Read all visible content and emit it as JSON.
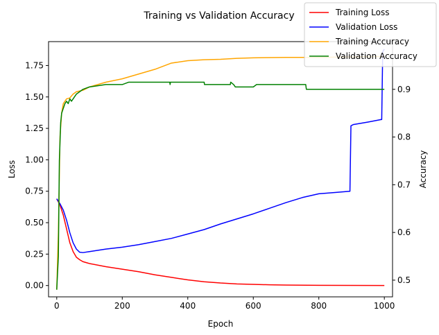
{
  "chart_data": {
    "type": "line",
    "title": "Training vs Validation Accuracy",
    "xlabel": "Epoch",
    "ylabel_left": "Loss",
    "ylabel_right": "Accuracy",
    "xlim": [
      -25,
      1025
    ],
    "ylim_left": [
      -0.09,
      1.94
    ],
    "ylim_right": [
      0.465,
      1.0
    ],
    "x_ticks": [
      0,
      200,
      400,
      600,
      800,
      1000
    ],
    "y_ticks_left": [
      0.0,
      0.25,
      0.5,
      0.75,
      1.0,
      1.25,
      1.5,
      1.75
    ],
    "y_tick_labels_left": [
      "0.00",
      "0.25",
      "0.50",
      "0.75",
      "1.00",
      "1.25",
      "1.50",
      "1.75"
    ],
    "y_ticks_right": [
      0.5,
      0.6,
      0.7,
      0.8,
      0.9
    ],
    "y_tick_labels_right": [
      "0.5",
      "0.6",
      "0.7",
      "0.8",
      "0.9"
    ],
    "grid": false,
    "legend_position": "top-right",
    "series": [
      {
        "name": "Training Loss",
        "axis": "left",
        "color": "#ff0000",
        "points": [
          [
            0,
            0.69
          ],
          [
            10,
            0.64
          ],
          [
            20,
            0.56
          ],
          [
            30,
            0.45
          ],
          [
            40,
            0.34
          ],
          [
            50,
            0.27
          ],
          [
            60,
            0.225
          ],
          [
            70,
            0.205
          ],
          [
            80,
            0.19
          ],
          [
            100,
            0.175
          ],
          [
            150,
            0.15
          ],
          [
            200,
            0.13
          ],
          [
            250,
            0.11
          ],
          [
            300,
            0.085
          ],
          [
            350,
            0.065
          ],
          [
            400,
            0.045
          ],
          [
            450,
            0.03
          ],
          [
            500,
            0.02
          ],
          [
            550,
            0.013
          ],
          [
            600,
            0.009
          ],
          [
            650,
            0.006
          ],
          [
            700,
            0.004
          ],
          [
            800,
            0.002
          ],
          [
            900,
            0.001
          ],
          [
            1000,
            0.0
          ]
        ]
      },
      {
        "name": "Validation Loss",
        "axis": "left",
        "color": "#0000ff",
        "points": [
          [
            0,
            0.69
          ],
          [
            10,
            0.65
          ],
          [
            20,
            0.6
          ],
          [
            30,
            0.52
          ],
          [
            40,
            0.42
          ],
          [
            50,
            0.34
          ],
          [
            60,
            0.29
          ],
          [
            70,
            0.265
          ],
          [
            80,
            0.262
          ],
          [
            100,
            0.27
          ],
          [
            150,
            0.29
          ],
          [
            200,
            0.305
          ],
          [
            250,
            0.325
          ],
          [
            300,
            0.35
          ],
          [
            350,
            0.375
          ],
          [
            400,
            0.41
          ],
          [
            450,
            0.445
          ],
          [
            500,
            0.49
          ],
          [
            550,
            0.53
          ],
          [
            600,
            0.57
          ],
          [
            650,
            0.615
          ],
          [
            700,
            0.66
          ],
          [
            750,
            0.7
          ],
          [
            800,
            0.73
          ],
          [
            850,
            0.74
          ],
          [
            895,
            0.75
          ],
          [
            898,
            1.27
          ],
          [
            905,
            1.28
          ],
          [
            950,
            1.3
          ],
          [
            990,
            1.32
          ],
          [
            992,
            1.32
          ],
          [
            995,
            1.86
          ],
          [
            1000,
            1.88
          ]
        ]
      },
      {
        "name": "Training Accuracy",
        "axis": "right",
        "color": "#ffa500",
        "points": [
          [
            0,
            0.48
          ],
          [
            5,
            0.6
          ],
          [
            10,
            0.8
          ],
          [
            15,
            0.85
          ],
          [
            20,
            0.87
          ],
          [
            30,
            0.88
          ],
          [
            40,
            0.882
          ],
          [
            50,
            0.89
          ],
          [
            60,
            0.895
          ],
          [
            80,
            0.898
          ],
          [
            100,
            0.905
          ],
          [
            150,
            0.915
          ],
          [
            200,
            0.922
          ],
          [
            250,
            0.932
          ],
          [
            300,
            0.942
          ],
          [
            350,
            0.955
          ],
          [
            400,
            0.96
          ],
          [
            450,
            0.962
          ],
          [
            500,
            0.963
          ],
          [
            550,
            0.965
          ],
          [
            600,
            0.966
          ],
          [
            700,
            0.967
          ],
          [
            800,
            0.967
          ],
          [
            900,
            0.968
          ],
          [
            1000,
            0.969
          ]
        ]
      },
      {
        "name": "Validation Accuracy",
        "axis": "right",
        "color": "#008000",
        "points": [
          [
            0,
            0.48
          ],
          [
            5,
            0.55
          ],
          [
            8,
            0.75
          ],
          [
            12,
            0.83
          ],
          [
            15,
            0.85
          ],
          [
            20,
            0.86
          ],
          [
            25,
            0.87
          ],
          [
            30,
            0.875
          ],
          [
            35,
            0.87
          ],
          [
            40,
            0.88
          ],
          [
            45,
            0.875
          ],
          [
            50,
            0.88
          ],
          [
            55,
            0.885
          ],
          [
            60,
            0.89
          ],
          [
            70,
            0.895
          ],
          [
            80,
            0.9
          ],
          [
            100,
            0.905
          ],
          [
            150,
            0.91
          ],
          [
            200,
            0.91
          ],
          [
            220,
            0.915
          ],
          [
            300,
            0.915
          ],
          [
            345,
            0.915
          ],
          [
            346,
            0.91
          ],
          [
            347,
            0.915
          ],
          [
            450,
            0.915
          ],
          [
            451,
            0.91
          ],
          [
            530,
            0.91
          ],
          [
            531,
            0.915
          ],
          [
            540,
            0.91
          ],
          [
            545,
            0.905
          ],
          [
            600,
            0.905
          ],
          [
            610,
            0.91
          ],
          [
            760,
            0.91
          ],
          [
            762,
            0.9
          ],
          [
            1000,
            0.9
          ]
        ]
      }
    ]
  }
}
